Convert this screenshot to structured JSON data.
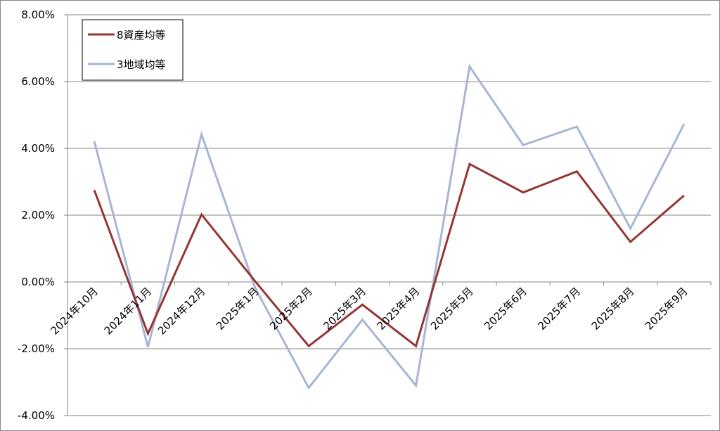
{
  "chart_data": {
    "type": "line",
    "title": "",
    "xlabel": "",
    "ylabel": "",
    "categories": [
      "2024年10月",
      "2024年11月",
      "2024年12月",
      "2025年1月",
      "2025年2月",
      "2025年3月",
      "2025年4月",
      "2025年5月",
      "2025年6月",
      "2025年7月",
      "2025年8月",
      "2025年9月"
    ],
    "series": [
      {
        "name": "8資産均等",
        "color": "#943634",
        "values": [
          2.75,
          -1.55,
          2.02,
          0.02,
          -1.92,
          -0.68,
          -1.92,
          3.53,
          2.68,
          3.31,
          1.2,
          2.59
        ]
      },
      {
        "name": "3地域均等",
        "color": "#a6b6d4",
        "values": [
          4.21,
          -1.95,
          4.42,
          -0.18,
          -3.17,
          -1.13,
          -3.1,
          6.45,
          4.1,
          4.65,
          1.6,
          4.73
        ]
      }
    ],
    "ylim": [
      -4,
      8
    ],
    "yticks": [
      -4,
      -2,
      0,
      2,
      4,
      6,
      8
    ],
    "ytick_labels": [
      "-4.00%",
      "-2.00%",
      "0.00%",
      "2.00%",
      "4.00%",
      "6.00%",
      "8.00%"
    ],
    "grid": true,
    "legend_position": "top-left"
  }
}
